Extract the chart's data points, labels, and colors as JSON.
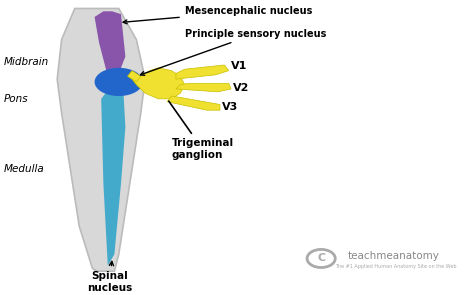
{
  "bg_color": "#ffffff",
  "brainstem_color": "#d8d8d8",
  "brainstem_edge": "#bbbbbb",
  "purple_color": "#8855aa",
  "blue_dark_color": "#2266cc",
  "blue_light_color": "#44aacc",
  "yellow_color": "#f0e030",
  "yellow_edge": "#c8c000",
  "label_midbrain": "Midbrain",
  "label_pons": "Pons",
  "label_medulla": "Medulla",
  "label_mesencephalic": "Mesencephalic nucleus",
  "label_principle": "Principle sensory nucleus",
  "label_v1": "V1",
  "label_v2": "V2",
  "label_v3": "V3",
  "label_trigeminal": "Trigeminal\nganglion",
  "label_spinal": "Spinal\nnucleus",
  "watermark_text": "teachmeanatomy",
  "watermark_sub": "The #1 Applied Human Anatomy Site on the Web",
  "arrow_color": "#000000"
}
